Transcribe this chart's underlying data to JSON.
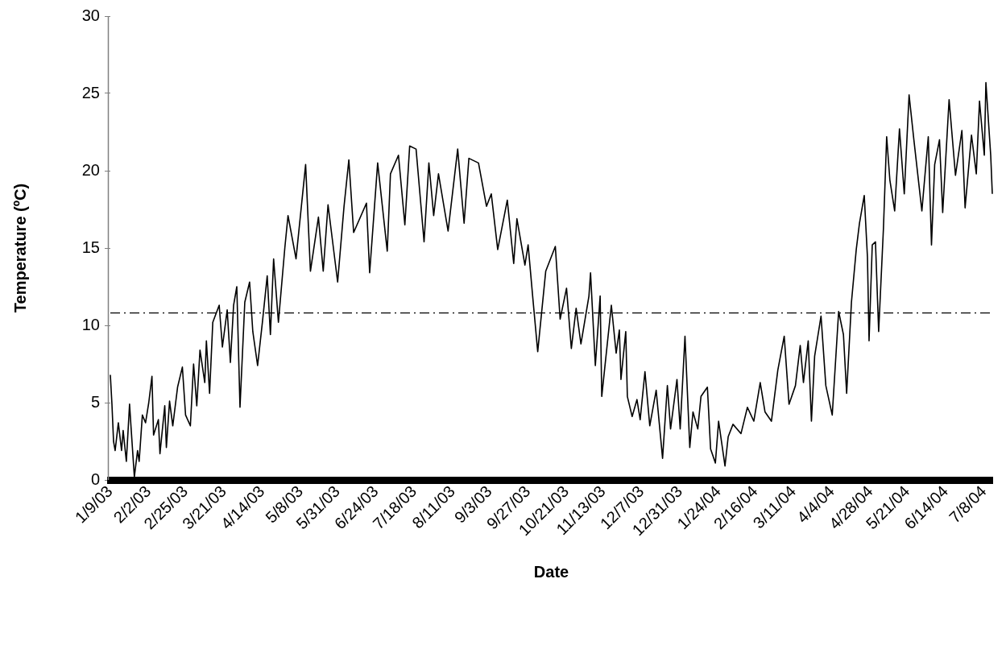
{
  "chart_data": {
    "type": "line",
    "xlabel": "Date",
    "ylabel": "Temperature (ºC)",
    "grid": false,
    "legend": false,
    "marker": "none",
    "line_style": "solid",
    "xlim": [
      "2003-01-09",
      "2004-07-13"
    ],
    "ylim": [
      0,
      30
    ],
    "yticks": [
      0,
      5,
      10,
      15,
      20,
      25,
      30
    ],
    "xticks": [
      {
        "value": "2003-01-09",
        "label": "1/9/03"
      },
      {
        "value": "2003-02-02",
        "label": "2/2/03"
      },
      {
        "value": "2003-02-25",
        "label": "2/25/03"
      },
      {
        "value": "2003-03-21",
        "label": "3/21/03"
      },
      {
        "value": "2003-04-14",
        "label": "4/14/03"
      },
      {
        "value": "2003-05-08",
        "label": "5/8/03"
      },
      {
        "value": "2003-05-31",
        "label": "5/31/03"
      },
      {
        "value": "2003-06-24",
        "label": "6/24/03"
      },
      {
        "value": "2003-07-18",
        "label": "7/18/03"
      },
      {
        "value": "2003-08-11",
        "label": "8/11/03"
      },
      {
        "value": "2003-09-03",
        "label": "9/3/03"
      },
      {
        "value": "2003-09-27",
        "label": "9/27/03"
      },
      {
        "value": "2003-10-21",
        "label": "10/21/03"
      },
      {
        "value": "2003-11-13",
        "label": "11/13/03"
      },
      {
        "value": "2003-12-07",
        "label": "12/7/03"
      },
      {
        "value": "2003-12-31",
        "label": "12/31/03"
      },
      {
        "value": "2004-01-24",
        "label": "1/24/04"
      },
      {
        "value": "2004-02-16",
        "label": "2/16/04"
      },
      {
        "value": "2004-03-11",
        "label": "3/11/04"
      },
      {
        "value": "2004-04-04",
        "label": "4/4/04"
      },
      {
        "value": "2004-04-28",
        "label": "4/28/04"
      },
      {
        "value": "2004-05-21",
        "label": "5/21/04"
      },
      {
        "value": "2004-06-14",
        "label": "6/14/04"
      },
      {
        "value": "2004-07-08",
        "label": "7/8/04"
      }
    ],
    "ref_lines": [
      {
        "axis": "y",
        "value": 10.8,
        "color": "#000000",
        "line_style": "dashed"
      }
    ],
    "series": [
      {
        "color": "#000000",
        "x": [
          "2003-01-09",
          "2003-01-10",
          "2003-01-11",
          "2003-01-12",
          "2003-01-14",
          "2003-01-16",
          "2003-01-17",
          "2003-01-19",
          "2003-01-21",
          "2003-01-22",
          "2003-01-24",
          "2003-01-26",
          "2003-01-27",
          "2003-01-29",
          "2003-01-31",
          "2003-02-02",
          "2003-02-04",
          "2003-02-05",
          "2003-02-08",
          "2003-02-09",
          "2003-02-12",
          "2003-02-13",
          "2003-02-15",
          "2003-02-17",
          "2003-02-20",
          "2003-02-23",
          "2003-02-25",
          "2003-02-28",
          "2003-03-02",
          "2003-03-04",
          "2003-03-06",
          "2003-03-09",
          "2003-03-10",
          "2003-03-12",
          "2003-03-14",
          "2003-03-18",
          "2003-03-20",
          "2003-03-23",
          "2003-03-25",
          "2003-03-27",
          "2003-03-29",
          "2003-03-31",
          "2003-04-03",
          "2003-04-06",
          "2003-04-08",
          "2003-04-11",
          "2003-04-14",
          "2003-04-17",
          "2003-04-19",
          "2003-04-21",
          "2003-04-24",
          "2003-04-28",
          "2003-04-30",
          "2003-05-05",
          "2003-05-11",
          "2003-05-14",
          "2003-05-19",
          "2003-05-22",
          "2003-05-25",
          "2003-05-31",
          "2003-06-04",
          "2003-06-07",
          "2003-06-10",
          "2003-06-18",
          "2003-06-20",
          "2003-06-25",
          "2003-07-01",
          "2003-07-03",
          "2003-07-08",
          "2003-07-12",
          "2003-07-15",
          "2003-07-19",
          "2003-07-24",
          "2003-07-27",
          "2003-07-30",
          "2003-08-02",
          "2003-08-08",
          "2003-08-14",
          "2003-08-18",
          "2003-08-21",
          "2003-08-27",
          "2003-09-01",
          "2003-09-04",
          "2003-09-08",
          "2003-09-14",
          "2003-09-18",
          "2003-09-20",
          "2003-09-25",
          "2003-09-27",
          "2003-09-30",
          "2003-10-03",
          "2003-10-08",
          "2003-10-14",
          "2003-10-17",
          "2003-10-21",
          "2003-10-24",
          "2003-10-27",
          "2003-10-30",
          "2003-11-04",
          "2003-11-05",
          "2003-11-08",
          "2003-11-11",
          "2003-11-12",
          "2003-11-18",
          "2003-11-21",
          "2003-11-23",
          "2003-11-24",
          "2003-11-27",
          "2003-11-28",
          "2003-12-01",
          "2003-12-04",
          "2003-12-06",
          "2003-12-09",
          "2003-12-12",
          "2003-12-16",
          "2003-12-20",
          "2003-12-23",
          "2003-12-25",
          "2003-12-29",
          "2003-12-31",
          "2004-01-03",
          "2004-01-06",
          "2004-01-08",
          "2004-01-11",
          "2004-01-13",
          "2004-01-17",
          "2004-01-19",
          "2004-01-22",
          "2004-01-24",
          "2004-01-28",
          "2004-01-30",
          "2004-02-02",
          "2004-02-07",
          "2004-02-11",
          "2004-02-15",
          "2004-02-19",
          "2004-02-22",
          "2004-02-26",
          "2004-03-01",
          "2004-03-05",
          "2004-03-08",
          "2004-03-12",
          "2004-03-15",
          "2004-03-17",
          "2004-03-20",
          "2004-03-22",
          "2004-03-24",
          "2004-03-28",
          "2004-03-31",
          "2004-04-04",
          "2004-04-08",
          "2004-04-11",
          "2004-04-13",
          "2004-04-16",
          "2004-04-19",
          "2004-04-21",
          "2004-04-24",
          "2004-04-26",
          "2004-04-27",
          "2004-04-29",
          "2004-05-01",
          "2004-05-03",
          "2004-05-06",
          "2004-05-08",
          "2004-05-10",
          "2004-05-13",
          "2004-05-16",
          "2004-05-19",
          "2004-05-22",
          "2004-05-25",
          "2004-05-30",
          "2004-06-03",
          "2004-06-05",
          "2004-06-07",
          "2004-06-10",
          "2004-06-12",
          "2004-06-16",
          "2004-06-20",
          "2004-06-24",
          "2004-06-26",
          "2004-06-30",
          "2004-07-03",
          "2004-07-05",
          "2004-07-08",
          "2004-07-09",
          "2004-07-12",
          "2004-07-13"
        ],
        "values": [
          6.8,
          4.9,
          2.5,
          1.9,
          3.7,
          1.9,
          3.2,
          1.2,
          4.9,
          3.3,
          0.2,
          1.9,
          1.2,
          4.2,
          3.7,
          5.0,
          6.7,
          2.9,
          3.9,
          1.7,
          4.8,
          2.1,
          5.1,
          3.5,
          6.0,
          7.3,
          4.2,
          3.5,
          7.5,
          4.8,
          8.4,
          6.3,
          9.0,
          5.6,
          10.2,
          11.3,
          8.6,
          11.0,
          7.6,
          11.3,
          12.5,
          4.7,
          11.5,
          12.8,
          9.6,
          7.4,
          10.2,
          13.2,
          9.4,
          14.3,
          10.2,
          15.0,
          17.1,
          14.3,
          20.4,
          13.5,
          17.0,
          13.5,
          17.8,
          12.8,
          17.7,
          20.7,
          16.0,
          17.9,
          13.4,
          20.5,
          14.8,
          19.8,
          21.0,
          16.5,
          21.6,
          21.4,
          15.4,
          20.5,
          17.1,
          19.8,
          16.1,
          21.4,
          16.6,
          20.8,
          20.5,
          17.7,
          18.5,
          14.9,
          18.1,
          14.0,
          16.9,
          13.9,
          15.2,
          11.7,
          8.3,
          13.5,
          15.1,
          10.4,
          12.4,
          8.5,
          11.1,
          8.8,
          11.9,
          13.4,
          7.4,
          11.9,
          5.4,
          11.3,
          8.2,
          9.7,
          6.5,
          9.6,
          5.4,
          4.1,
          5.2,
          3.9,
          7.0,
          3.5,
          5.8,
          1.4,
          6.1,
          3.3,
          6.5,
          3.3,
          9.3,
          2.1,
          4.4,
          3.3,
          5.4,
          6.0,
          2.0,
          1.1,
          3.8,
          0.9,
          2.8,
          3.6,
          3.0,
          4.7,
          3.8,
          6.3,
          4.4,
          3.8,
          7.1,
          9.3,
          4.9,
          6.1,
          8.7,
          6.3,
          9.0,
          3.8,
          8.0,
          10.6,
          6.1,
          4.2,
          10.9,
          9.4,
          5.6,
          11.5,
          14.9,
          16.6,
          18.4,
          14.4,
          9.0,
          15.2,
          15.4,
          9.6,
          16.3,
          22.2,
          19.4,
          17.4,
          22.7,
          18.5,
          24.9,
          22.0,
          17.4,
          22.2,
          15.2,
          20.4,
          22.0,
          17.3,
          24.6,
          19.7,
          22.6,
          17.6,
          22.3,
          19.8,
          24.5,
          21.0,
          25.7,
          21.0,
          18.5
        ]
      }
    ]
  }
}
